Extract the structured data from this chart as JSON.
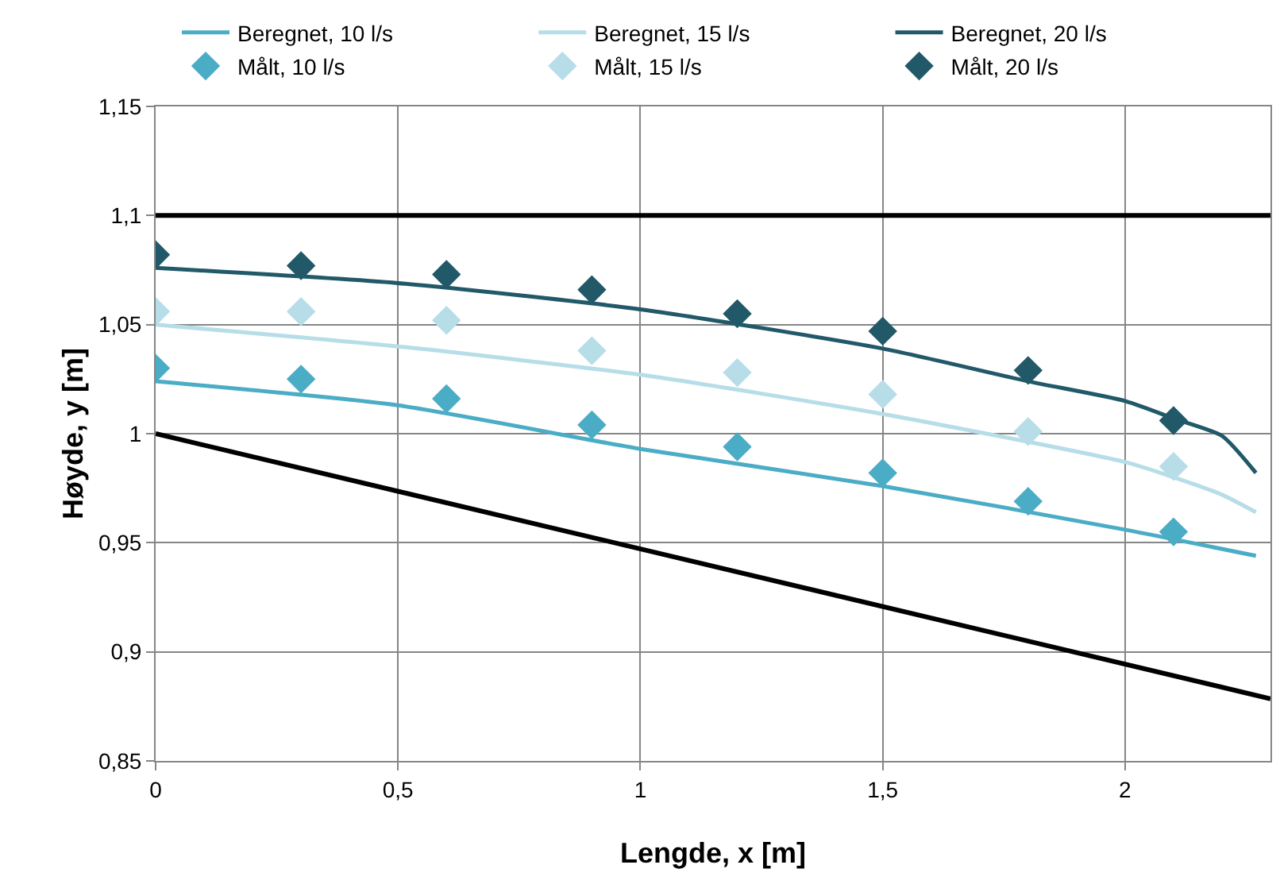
{
  "chart_data": {
    "type": "line",
    "xlabel": "Lengde, x [m]",
    "ylabel": "Høyde, y [m]",
    "xlim": [
      0,
      2.3
    ],
    "xticks": [
      0,
      {
        "value": 0.5,
        "label": "0,5"
      },
      1,
      {
        "value": 1.5,
        "label": "1,5"
      },
      2
    ],
    "ylim": [
      0.85,
      1.15
    ],
    "yticks": [
      {
        "value": 0.85,
        "label": "0,85"
      },
      {
        "value": 0.9,
        "label": "0,9"
      },
      {
        "value": 0.95,
        "label": "0,95"
      },
      1,
      {
        "value": 1.05,
        "label": "1,05"
      },
      {
        "value": 1.1,
        "label": "1,1"
      },
      {
        "value": 1.15,
        "label": "1,15"
      }
    ],
    "grid": true,
    "legend": "top",
    "line_style": "solid",
    "series": [
      {
        "name": "Beregnet, 10 l/s",
        "marker": "none",
        "color": "#4bacc6",
        "x": [
          0,
          0.5,
          1,
          1.5,
          2,
          2.27
        ],
        "values": [
          1.024,
          1.013,
          0.993,
          0.976,
          0.956,
          0.944
        ]
      },
      {
        "name": "Beregnet, 15 l/s",
        "marker": "none",
        "color": "#b7dde8",
        "x": [
          0,
          0.5,
          1,
          1.5,
          2,
          2.1,
          2.2,
          2.27
        ],
        "values": [
          1.05,
          1.04,
          1.027,
          1.009,
          0.987,
          0.98,
          0.972,
          0.964
        ]
      },
      {
        "name": "Beregnet, 20 l/s",
        "marker": "none",
        "color": "#215968",
        "x": [
          0,
          0.5,
          1,
          1.5,
          1.8,
          2,
          2.1,
          2.2,
          2.27
        ],
        "values": [
          1.076,
          1.069,
          1.057,
          1.039,
          1.024,
          1.015,
          1.007,
          0.999,
          0.982
        ]
      },
      {
        "name": "Målt, 10 l/s",
        "type": "scatter",
        "marker": "diamond",
        "color": "#4bacc6",
        "x": [
          0,
          0.3,
          0.6,
          0.9,
          1.2,
          1.5,
          1.8,
          2.1
        ],
        "values": [
          1.03,
          1.025,
          1.016,
          1.004,
          0.994,
          0.982,
          0.969,
          0.955
        ]
      },
      {
        "name": "Målt, 15 l/s",
        "type": "scatter",
        "marker": "diamond",
        "color": "#b7dde8",
        "x": [
          0,
          0.3,
          0.6,
          0.9,
          1.2,
          1.5,
          1.8,
          2.1
        ],
        "values": [
          1.056,
          1.056,
          1.052,
          1.038,
          1.028,
          1.018,
          1.001,
          0.985
        ]
      },
      {
        "name": "Målt, 20 l/s",
        "type": "scatter",
        "marker": "diamond",
        "color": "#215968",
        "x": [
          0,
          0.3,
          0.6,
          0.9,
          1.2,
          1.5,
          1.8,
          2.1
        ],
        "values": [
          1.082,
          1.077,
          1.073,
          1.066,
          1.055,
          1.047,
          1.029,
          1.006
        ]
      },
      {
        "marker": "none",
        "color": "#000000",
        "x": [
          0,
          2.3
        ],
        "values": [
          1.1,
          1.1
        ]
      },
      {
        "marker": "none",
        "color": "#000000",
        "x": [
          0,
          2.3
        ],
        "values": [
          1,
          0.8785
        ]
      }
    ]
  }
}
